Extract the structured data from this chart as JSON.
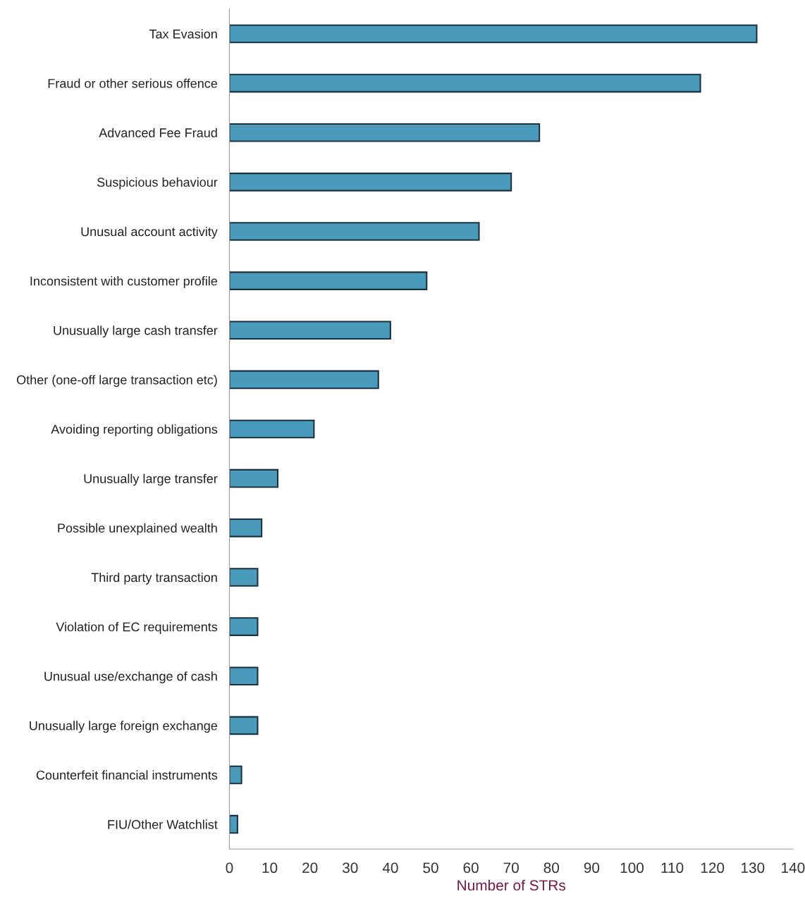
{
  "chart_data": {
    "type": "bar",
    "orientation": "horizontal",
    "xlabel": "Number of STRs",
    "categories": [
      "Tax Evasion",
      "Fraud or other serious offence",
      "Advanced Fee Fraud",
      "Suspicious behaviour",
      "Unusual account activity",
      "Inconsistent with customer profile",
      "Unusually large cash transfer",
      "Other (one-off large transaction etc)",
      "Avoiding reporting obligations",
      "Unusually large transfer",
      "Possible unexplained wealth",
      "Third party transaction",
      "Violation of EC requirements",
      "Unusual use/exchange of cash",
      "Unusually large foreign exchange",
      "Counterfeit financial instruments",
      "FIU/Other Watchlist"
    ],
    "values": [
      131,
      117,
      77,
      70,
      62,
      49,
      40,
      37,
      21,
      12,
      8,
      7,
      7,
      7,
      7,
      3,
      2
    ],
    "color": "#4a9bbb",
    "xlim": [
      0,
      140
    ],
    "xticks": [
      0,
      10,
      20,
      30,
      40,
      50,
      60,
      70,
      80,
      90,
      100,
      110,
      120,
      130,
      140
    ],
    "grid": false,
    "legend": false
  }
}
